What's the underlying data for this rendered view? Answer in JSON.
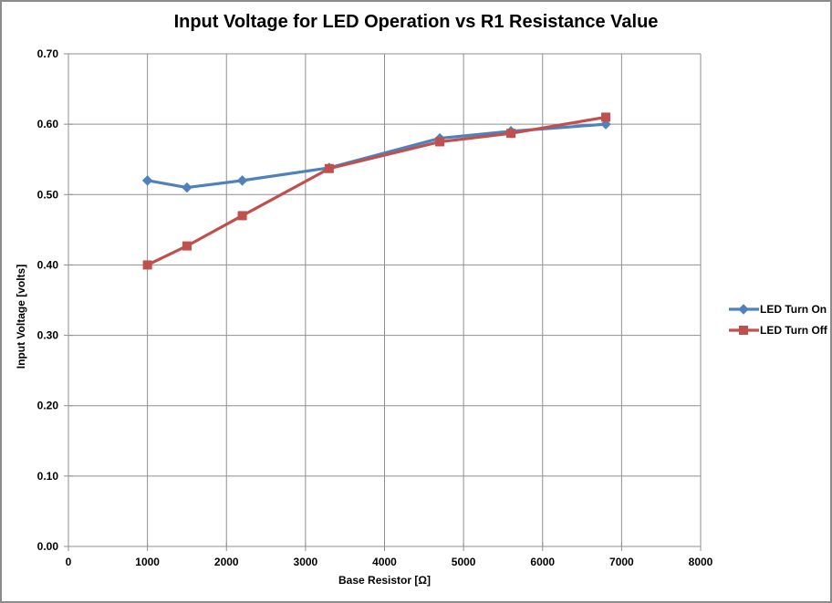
{
  "chart_data": {
    "type": "line",
    "title": "Input Voltage for LED Operation vs R1 Resistance Value",
    "xlabel": "Base Resistor [Ω]",
    "ylabel": "Input Voltage [volts]",
    "xlim": [
      0,
      8000
    ],
    "ylim": [
      0.0,
      0.7
    ],
    "xticks": [
      0,
      1000,
      2000,
      3000,
      4000,
      5000,
      6000,
      7000,
      8000
    ],
    "xtick_labels": [
      "0",
      "1000",
      "2000",
      "3000",
      "4000",
      "5000",
      "6000",
      "7000",
      "8000"
    ],
    "yticks": [
      0.0,
      0.1,
      0.2,
      0.3,
      0.4,
      0.5,
      0.6,
      0.7
    ],
    "ytick_labels": [
      "0.00",
      "0.10",
      "0.20",
      "0.30",
      "0.40",
      "0.50",
      "0.60",
      "0.70"
    ],
    "grid": true,
    "legend_position": "right",
    "x": [
      1000,
      1500,
      2200,
      3300,
      4700,
      5600,
      6800
    ],
    "series": [
      {
        "name": "LED Turn On",
        "color": "#4F81BD",
        "marker": "diamond",
        "values": [
          0.52,
          0.51,
          0.52,
          0.538,
          0.58,
          0.59,
          0.6
        ]
      },
      {
        "name": "LED Turn Off",
        "color": "#C0504D",
        "marker": "square",
        "values": [
          0.4,
          0.427,
          0.47,
          0.537,
          0.575,
          0.587,
          0.61
        ]
      }
    ],
    "colors": {
      "gridline": "#8F8F8F",
      "axis": "#8F8F8F",
      "text": "#000000",
      "background": "#FFFFFF",
      "border": "#8C8C8C"
    }
  }
}
